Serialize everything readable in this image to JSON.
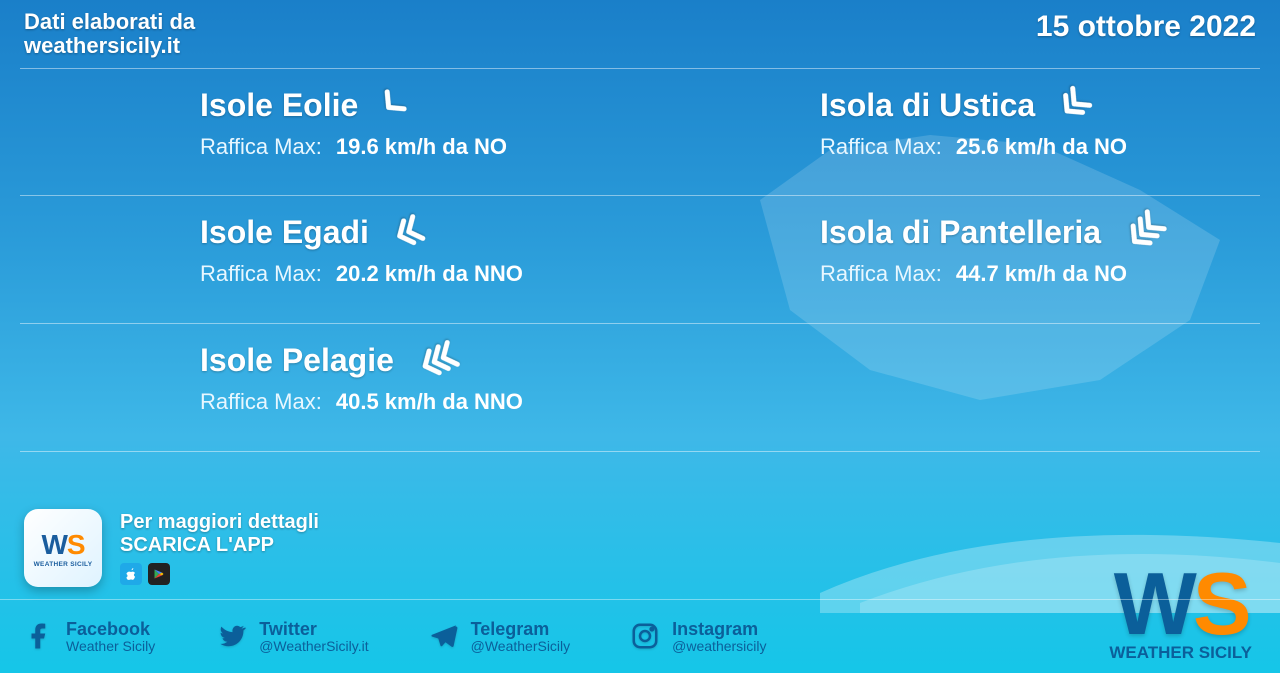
{
  "header": {
    "source_prefix": "Dati elaborati da",
    "source_site": "weathersicily.it",
    "date": "15 ottobre 2022"
  },
  "colors": {
    "text": "#ffffff",
    "accent_blue": "#0b5f9a",
    "accent_orange": "#ff8a00",
    "bg_top": "#1a7fc9",
    "bg_bottom": "#15c6e8",
    "divider": "rgba(255,255,255,0.45)"
  },
  "islands": [
    {
      "name": "Isole Eolie",
      "gust_label": "Raffica Max:",
      "gust_value": "19.6 km/h da NO",
      "intensity": 1,
      "arrow_rotation": 135
    },
    {
      "name": "Isola di Ustica",
      "gust_label": "Raffica Max:",
      "gust_value": "25.6 km/h da NO",
      "intensity": 2,
      "arrow_rotation": 135
    },
    {
      "name": "Isole Egadi",
      "gust_label": "Raffica Max:",
      "gust_value": "20.2 km/h da NNO",
      "intensity": 2,
      "arrow_rotation": 155
    },
    {
      "name": "Isola di Pantelleria",
      "gust_label": "Raffica Max:",
      "gust_value": "44.7 km/h da NO",
      "intensity": 3,
      "arrow_rotation": 135
    },
    {
      "name": "Isole Pelagie",
      "gust_label": "Raffica Max:",
      "gust_value": "40.5 km/h da NNO",
      "intensity": 3,
      "arrow_rotation": 155
    }
  ],
  "promo": {
    "line1": "Per maggiori dettagli",
    "line2": "SCARICA L'APP",
    "app_name_short": "WS",
    "app_name_full": "WEATHER SICILY"
  },
  "socials": {
    "facebook": {
      "name": "Facebook",
      "handle": "Weather Sicily"
    },
    "twitter": {
      "name": "Twitter",
      "handle": "@WeatherSicily.it"
    },
    "telegram": {
      "name": "Telegram",
      "handle": "@WeatherSicily"
    },
    "instagram": {
      "name": "Instagram",
      "handle": "@weathersicily"
    }
  },
  "brand": {
    "short": "WS",
    "full": "WEATHER SICILY"
  }
}
